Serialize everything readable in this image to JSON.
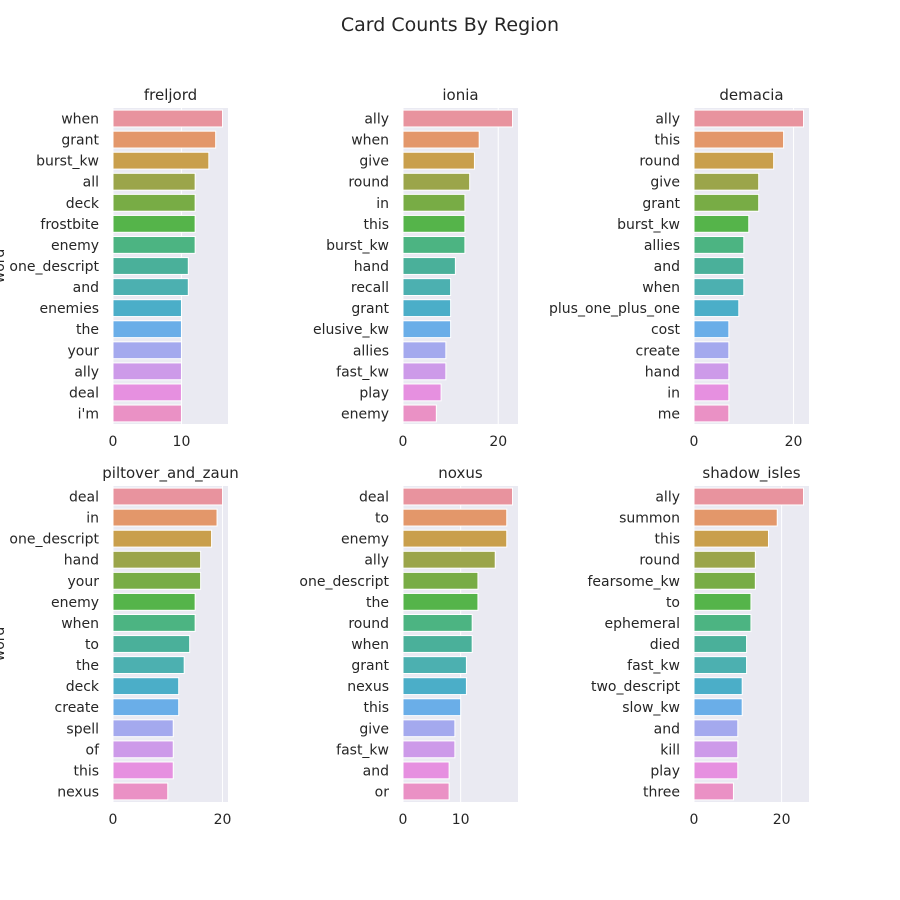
{
  "figure": {
    "title": "Card Counts By Region"
  },
  "axis_label_y": "word",
  "chart_data": [
    {
      "type": "bar",
      "orientation": "horizontal",
      "title": "freljord",
      "categories": [
        "when",
        "grant",
        "burst_kw",
        "all",
        "deck",
        "frostbite",
        "enemy",
        "one_descript",
        "and",
        "enemies",
        "the",
        "your",
        "ally",
        "deal",
        "i'm"
      ],
      "values": [
        16,
        15,
        14,
        12,
        12,
        12,
        12,
        11,
        11,
        10,
        10,
        10,
        10,
        10,
        10
      ],
      "xlabel": "",
      "ylabel": "word",
      "xlim": [
        0,
        16.8
      ],
      "xticks": [
        0,
        10
      ]
    },
    {
      "type": "bar",
      "orientation": "horizontal",
      "title": "ionia",
      "categories": [
        "ally",
        "when",
        "give",
        "round",
        "in",
        "this",
        "burst_kw",
        "hand",
        "recall",
        "grant",
        "elusive_kw",
        "allies",
        "fast_kw",
        "play",
        "enemy"
      ],
      "values": [
        23,
        16,
        15,
        14,
        13,
        13,
        13,
        11,
        10,
        10,
        10,
        9,
        9,
        8,
        7
      ],
      "xlabel": "",
      "ylabel": "",
      "xlim": [
        0,
        24.15
      ],
      "xticks": [
        0,
        20
      ]
    },
    {
      "type": "bar",
      "orientation": "horizontal",
      "title": "demacia",
      "categories": [
        "ally",
        "this",
        "round",
        "give",
        "grant",
        "burst_kw",
        "allies",
        "and",
        "when",
        "plus_one_plus_one",
        "cost",
        "create",
        "hand",
        "in",
        "me"
      ],
      "values": [
        22,
        18,
        16,
        13,
        13,
        11,
        10,
        10,
        10,
        9,
        7,
        7,
        7,
        7,
        7
      ],
      "xlabel": "",
      "ylabel": "",
      "xlim": [
        0,
        23.1
      ],
      "xticks": [
        0,
        20
      ]
    },
    {
      "type": "bar",
      "orientation": "horizontal",
      "title": "piltover_and_zaun",
      "categories": [
        "deal",
        "in",
        "one_descript",
        "hand",
        "your",
        "enemy",
        "when",
        "to",
        "the",
        "deck",
        "create",
        "spell",
        "of",
        "this",
        "nexus"
      ],
      "values": [
        20,
        19,
        18,
        16,
        16,
        15,
        15,
        14,
        13,
        12,
        12,
        11,
        11,
        11,
        10
      ],
      "xlabel": "",
      "ylabel": "word",
      "xlim": [
        0,
        21
      ],
      "xticks": [
        0,
        20
      ]
    },
    {
      "type": "bar",
      "orientation": "horizontal",
      "title": "noxus",
      "categories": [
        "deal",
        "to",
        "enemy",
        "ally",
        "one_descript",
        "the",
        "round",
        "when",
        "grant",
        "nexus",
        "this",
        "give",
        "fast_kw",
        "and",
        "or"
      ],
      "values": [
        19,
        18,
        18,
        16,
        13,
        13,
        12,
        12,
        11,
        11,
        10,
        9,
        9,
        8,
        8
      ],
      "xlabel": "",
      "ylabel": "",
      "xlim": [
        0,
        19.95
      ],
      "xticks": [
        0,
        10
      ]
    },
    {
      "type": "bar",
      "orientation": "horizontal",
      "title": "shadow_isles",
      "categories": [
        "ally",
        "summon",
        "this",
        "round",
        "fearsome_kw",
        "to",
        "ephemeral",
        "died",
        "fast_kw",
        "two_descript",
        "slow_kw",
        "and",
        "kill",
        "play",
        "three"
      ],
      "values": [
        25,
        19,
        17,
        14,
        14,
        13,
        13,
        12,
        12,
        11,
        11,
        10,
        10,
        10,
        9
      ],
      "xlabel": "",
      "ylabel": "",
      "xlim": [
        0,
        26.25
      ],
      "xticks": [
        0,
        20
      ]
    }
  ],
  "colors": [
    "#e8939e",
    "#e3976a",
    "#c99f4c",
    "#9ba54a",
    "#78ac45",
    "#55b44a",
    "#4cb482",
    "#4ab09a",
    "#4cb0b0",
    "#4baec8",
    "#6aaee8",
    "#a4a9ee",
    "#cd9ae9",
    "#e690e0",
    "#ea91c5"
  ],
  "style": {
    "panel_background": "#eaeaf2",
    "grid": true,
    "grid_color": "#ffffff"
  }
}
